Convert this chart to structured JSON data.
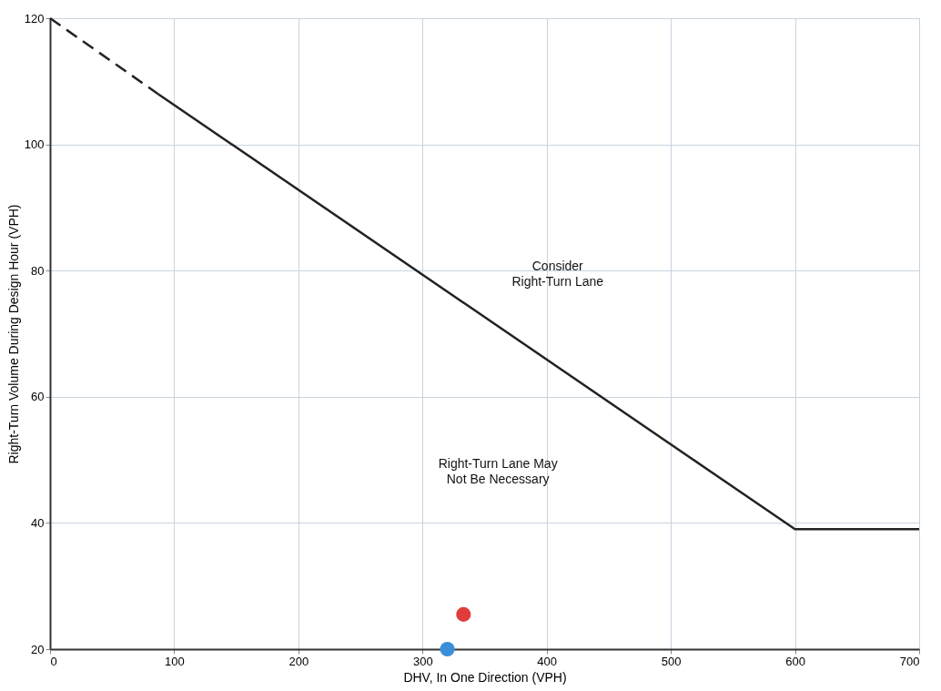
{
  "chart_data": {
    "type": "line",
    "xlabel": "DHV, In One Direction (VPH)",
    "ylabel": "Right-Turn Volume During Design Hour (VPH)",
    "xlim": [
      0,
      700
    ],
    "xticks": [
      0,
      100,
      200,
      300,
      400,
      500,
      600,
      700
    ],
    "ylim": [
      20,
      120
    ],
    "yticks": [
      20,
      40,
      60,
      80,
      100,
      120
    ],
    "grid": true,
    "series": [
      {
        "color": "#222222",
        "line_style": "dashed",
        "x": [
          0,
          87
        ],
        "values": [
          120,
          108
        ]
      },
      {
        "color": "#222222",
        "line_style": "solid",
        "x": [
          87,
          600,
          700
        ],
        "values": [
          108,
          39,
          39
        ]
      },
      {
        "type": "scatter",
        "color": "#e03c3c",
        "marker": "circle",
        "x": [
          333
        ],
        "values": [
          25.5
        ]
      },
      {
        "type": "scatter",
        "color": "#3b8fd9",
        "marker": "circle",
        "x": [
          320
        ],
        "values": [
          20
        ]
      }
    ],
    "annotations": [
      "Consider\nRight-Turn Lane",
      "Right-Turn Lane May\nNot Be Necessary"
    ]
  }
}
